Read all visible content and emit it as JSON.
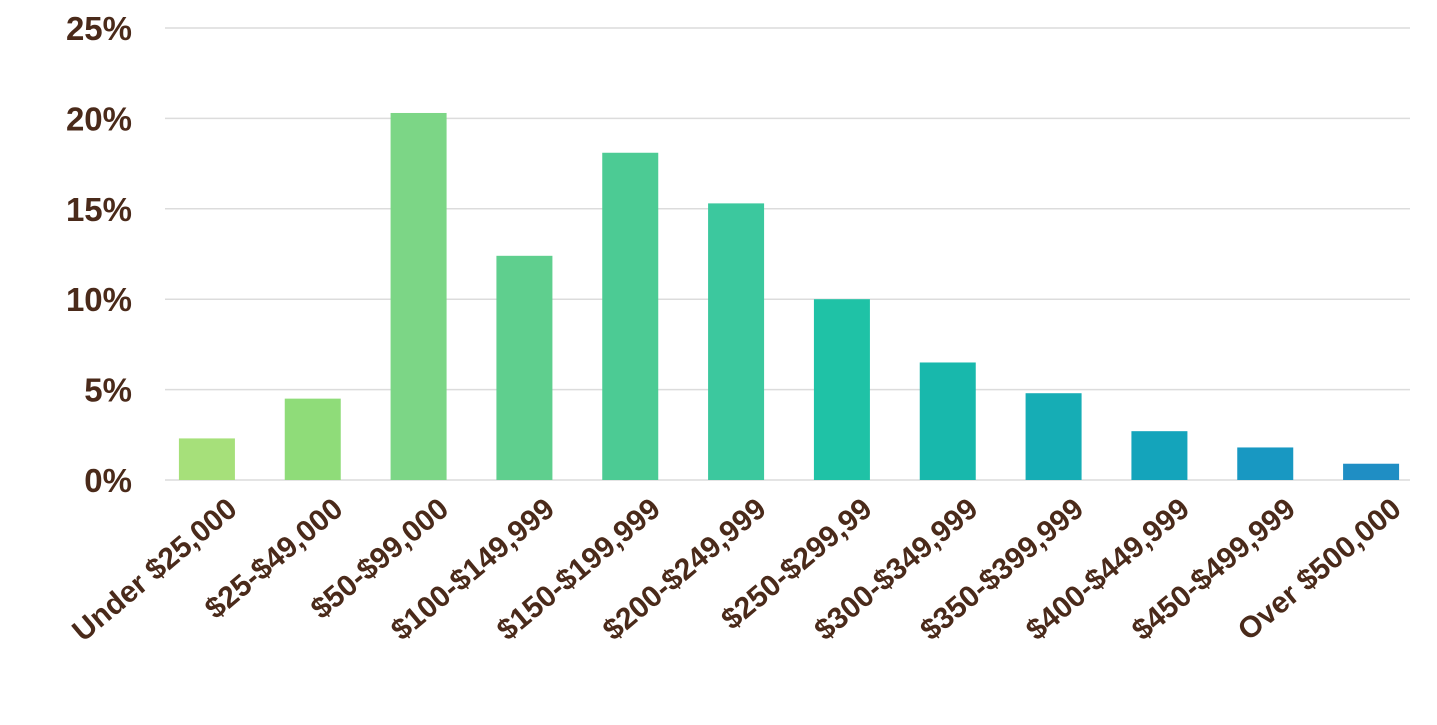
{
  "chart_data": {
    "type": "bar",
    "title": "",
    "xlabel": "",
    "ylabel": "",
    "categories": [
      "Under $25,000",
      "$25-$49,000",
      "$50-$99,000",
      "$100-$149,999",
      "$150-$199,999",
      "$200-$249,999",
      "$250-$299,99",
      "$300-$349,999",
      "$350-$399,999",
      "$400-$449,999",
      "$450-$499,999",
      "Over $500,000"
    ],
    "values": [
      2.3,
      4.5,
      20.3,
      12.4,
      18.1,
      15.3,
      10.0,
      6.5,
      4.8,
      2.7,
      1.8,
      0.9
    ],
    "ylim": [
      0,
      25
    ],
    "yticks": [
      0,
      5,
      10,
      15,
      20,
      25
    ],
    "ytick_labels": [
      "0%",
      "5%",
      "10%",
      "15%",
      "20%",
      "25%"
    ],
    "grid": true,
    "legend": "none",
    "colors": [
      "#a6e07a",
      "#8fdc79",
      "#7cd686",
      "#5fcf8e",
      "#4ccb94",
      "#3cc89e",
      "#1fc2a6",
      "#18b8ac",
      "#16adb5",
      "#14a4bb",
      "#1898c2",
      "#1f8ec4"
    ],
    "text_color": "#4a2a1a",
    "grid_color": "#dcdcdc"
  }
}
